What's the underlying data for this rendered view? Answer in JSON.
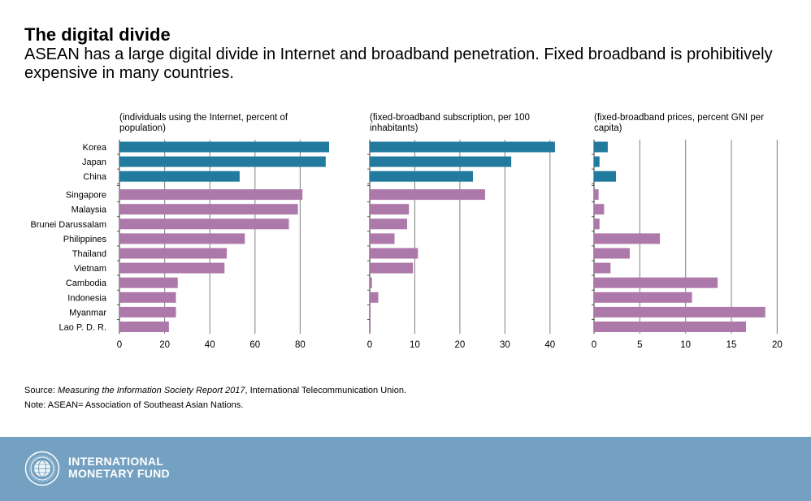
{
  "header": {
    "title": "The digital divide",
    "subtitle": "ASEAN has a large digital divide in Internet and broadband penetration. Fixed broadband is prohibitively expensive in many countries."
  },
  "colors": {
    "highlight": "#227b9e",
    "asean": "#ad79aa",
    "grid": "#8a8a8a",
    "footer": "#74a1c1"
  },
  "chart_data": [
    {
      "type": "bar",
      "orientation": "horizontal",
      "title_lines": [
        "(individuals using the Internet, percent of",
        "population)"
      ],
      "categories": [
        "Korea",
        "Japan",
        "China",
        "Singapore",
        "Malaysia",
        "Brunei Darussalam",
        "Philippines",
        "Thailand",
        "Vietnam",
        "Cambodia",
        "Indonesia",
        "Myanmar",
        "Lao P. D. R."
      ],
      "values": [
        92.8,
        91.3,
        53.2,
        81.0,
        79.0,
        75.0,
        55.5,
        47.5,
        46.5,
        25.8,
        25.0,
        25.0,
        21.9
      ],
      "groups": [
        "highlight",
        "highlight",
        "highlight",
        "asean",
        "asean",
        "asean",
        "asean",
        "asean",
        "asean",
        "asean",
        "asean",
        "asean",
        "asean"
      ],
      "xlim": [
        0,
        100
      ],
      "xticks": [
        0,
        20,
        40,
        60,
        80
      ],
      "xlabel": "",
      "ylabel": "",
      "grid": true
    },
    {
      "type": "bar",
      "orientation": "horizontal",
      "title_lines": [
        "(fixed-broadband subscription, per 100",
        "inhabitants)"
      ],
      "categories": [
        "Korea",
        "Japan",
        "China",
        "Singapore",
        "Malaysia",
        "Brunei Darussalam",
        "Philippines",
        "Thailand",
        "Vietnam",
        "Cambodia",
        "Indonesia",
        "Myanmar",
        "Lao P. D. R."
      ],
      "values": [
        41.1,
        31.4,
        22.9,
        25.6,
        8.7,
        8.3,
        5.5,
        10.7,
        9.6,
        0.5,
        1.9,
        0.2,
        0.2
      ],
      "groups": [
        "highlight",
        "highlight",
        "highlight",
        "asean",
        "asean",
        "asean",
        "asean",
        "asean",
        "asean",
        "asean",
        "asean",
        "asean",
        "asean"
      ],
      "xlim": [
        0,
        44
      ],
      "xticks": [
        0,
        10,
        20,
        30,
        40
      ],
      "xlabel": "",
      "ylabel": "",
      "grid": true
    },
    {
      "type": "bar",
      "orientation": "horizontal",
      "title_lines": [
        "(fixed-broadband prices, percent GNI per",
        "capita)"
      ],
      "categories": [
        "Korea",
        "Japan",
        "China",
        "Singapore",
        "Malaysia",
        "Brunei Darussalam",
        "Philippines",
        "Thailand",
        "Vietnam",
        "Cambodia",
        "Indonesia",
        "Myanmar",
        "Lao P. D. R."
      ],
      "values": [
        1.5,
        0.6,
        2.4,
        0.5,
        1.1,
        0.6,
        7.2,
        3.9,
        1.8,
        13.5,
        10.7,
        18.7,
        16.6
      ],
      "groups": [
        "highlight",
        "highlight",
        "highlight",
        "asean",
        "asean",
        "asean",
        "asean",
        "asean",
        "asean",
        "asean",
        "asean",
        "asean",
        "asean"
      ],
      "xlim": [
        0,
        20.5
      ],
      "xticks": [
        0,
        5,
        10,
        15,
        20
      ],
      "xlabel": "",
      "ylabel": "",
      "grid": true
    }
  ],
  "source": {
    "prefix": "Source: ",
    "report": "Measuring the Information Society Report 2017",
    "suffix": ", International Telecommunication Union.",
    "note": "Note:  ASEAN= Association of Southeast Asian Nations."
  },
  "footer": {
    "org_line1": "INTERNATIONAL",
    "org_line2": "MONETARY FUND",
    "logo_icon": "imf-seal-icon"
  }
}
